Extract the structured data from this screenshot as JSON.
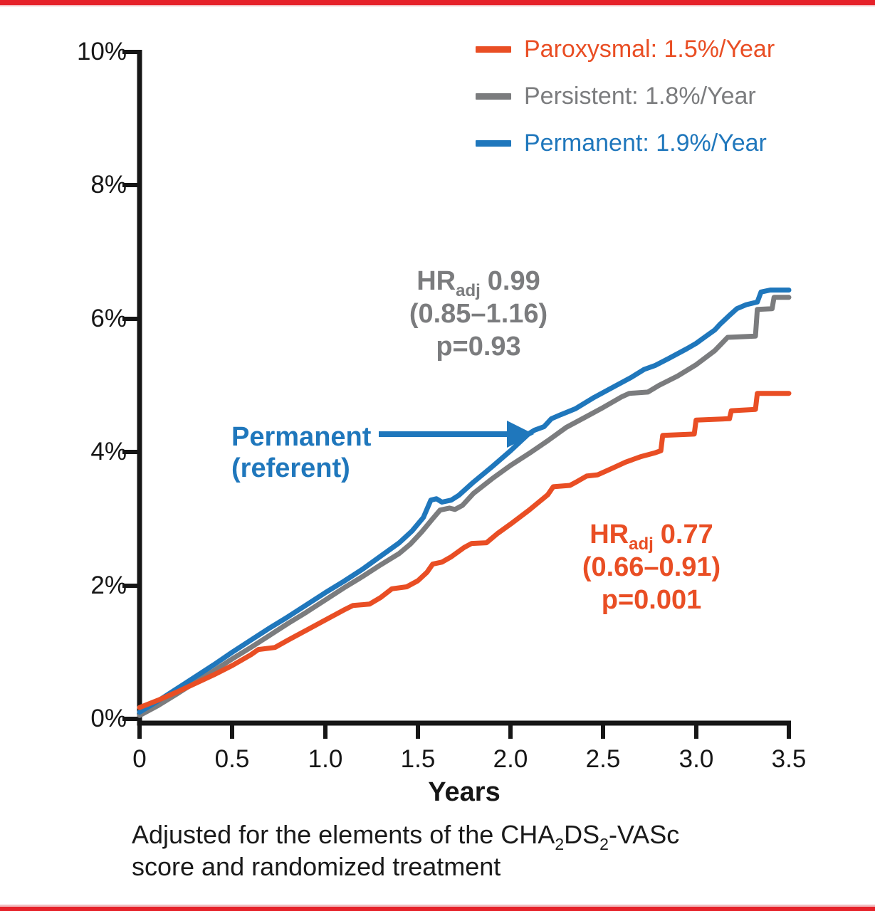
{
  "page": {
    "top_bar_color": "#E62129",
    "bottom_bar_color": "#E62129",
    "bar_shade_color": "#F2BCC0",
    "background": "#FFFFFF",
    "axis_color": "#161616"
  },
  "chart_data": {
    "type": "line",
    "title": "",
    "xlabel": "Years",
    "ylabel": "",
    "x_unit": "Years",
    "y_unit": "percent cumulative event rate",
    "xlim": [
      0,
      3.5
    ],
    "ylim": [
      0,
      10
    ],
    "grid": false,
    "legend_position": "top-right",
    "x_ticks": [
      "0",
      "0.5",
      "1.0",
      "1.5",
      "2.0",
      "2.5",
      "3.0",
      "3.5"
    ],
    "y_ticks": [
      "0%",
      "2%",
      "4%",
      "6%",
      "8%",
      "10%"
    ],
    "series": [
      {
        "name": "Paroxysmal",
        "legend_label": "Paroxysmal: 1.5%/Year",
        "annual_rate": "1.5%/Year",
        "color": "#E94E24",
        "points": [
          [
            0,
            0.17
          ],
          [
            0.1,
            0.28
          ],
          [
            0.2,
            0.4
          ],
          [
            0.3,
            0.53
          ],
          [
            0.4,
            0.66
          ],
          [
            0.5,
            0.8
          ],
          [
            0.6,
            0.96
          ],
          [
            0.64,
            1.04
          ],
          [
            0.73,
            1.07
          ],
          [
            0.8,
            1.18
          ],
          [
            0.9,
            1.33
          ],
          [
            1.0,
            1.48
          ],
          [
            1.1,
            1.63
          ],
          [
            1.15,
            1.7
          ],
          [
            1.24,
            1.72
          ],
          [
            1.3,
            1.82
          ],
          [
            1.36,
            1.95
          ],
          [
            1.44,
            1.98
          ],
          [
            1.5,
            2.07
          ],
          [
            1.55,
            2.2
          ],
          [
            1.58,
            2.32
          ],
          [
            1.63,
            2.35
          ],
          [
            1.68,
            2.43
          ],
          [
            1.75,
            2.57
          ],
          [
            1.79,
            2.63
          ],
          [
            1.87,
            2.64
          ],
          [
            1.93,
            2.78
          ],
          [
            2.0,
            2.92
          ],
          [
            2.1,
            3.13
          ],
          [
            2.2,
            3.36
          ],
          [
            2.23,
            3.48
          ],
          [
            2.32,
            3.5
          ],
          [
            2.36,
            3.56
          ],
          [
            2.41,
            3.64
          ],
          [
            2.47,
            3.66
          ],
          [
            2.55,
            3.76
          ],
          [
            2.62,
            3.85
          ],
          [
            2.7,
            3.93
          ],
          [
            2.78,
            3.99
          ],
          [
            2.81,
            4.02
          ],
          [
            2.82,
            4.25
          ],
          [
            2.99,
            4.27
          ],
          [
            3.0,
            4.48
          ],
          [
            3.18,
            4.5
          ],
          [
            3.19,
            4.62
          ],
          [
            3.32,
            4.64
          ],
          [
            3.33,
            4.88
          ],
          [
            3.5,
            4.88
          ]
        ]
      },
      {
        "name": "Persistent",
        "legend_label": "Persistent: 1.8%/Year",
        "annual_rate": "1.8%/Year",
        "color": "#7B7C7E",
        "points": [
          [
            0,
            0.05
          ],
          [
            0.1,
            0.2
          ],
          [
            0.2,
            0.37
          ],
          [
            0.3,
            0.55
          ],
          [
            0.4,
            0.72
          ],
          [
            0.5,
            0.9
          ],
          [
            0.6,
            1.07
          ],
          [
            0.7,
            1.25
          ],
          [
            0.8,
            1.43
          ],
          [
            0.9,
            1.6
          ],
          [
            1.0,
            1.78
          ],
          [
            1.1,
            1.96
          ],
          [
            1.2,
            2.13
          ],
          [
            1.3,
            2.31
          ],
          [
            1.4,
            2.48
          ],
          [
            1.46,
            2.62
          ],
          [
            1.52,
            2.8
          ],
          [
            1.58,
            3.0
          ],
          [
            1.62,
            3.13
          ],
          [
            1.67,
            3.16
          ],
          [
            1.7,
            3.14
          ],
          [
            1.74,
            3.2
          ],
          [
            1.8,
            3.38
          ],
          [
            1.9,
            3.6
          ],
          [
            2.0,
            3.8
          ],
          [
            2.1,
            3.98
          ],
          [
            2.2,
            4.17
          ],
          [
            2.3,
            4.37
          ],
          [
            2.4,
            4.52
          ],
          [
            2.5,
            4.67
          ],
          [
            2.6,
            4.83
          ],
          [
            2.64,
            4.88
          ],
          [
            2.74,
            4.9
          ],
          [
            2.8,
            5.0
          ],
          [
            2.9,
            5.14
          ],
          [
            3.0,
            5.31
          ],
          [
            3.1,
            5.52
          ],
          [
            3.17,
            5.72
          ],
          [
            3.32,
            5.74
          ],
          [
            3.33,
            6.14
          ],
          [
            3.41,
            6.15
          ],
          [
            3.42,
            6.32
          ],
          [
            3.5,
            6.32
          ]
        ]
      },
      {
        "name": "Permanent",
        "legend_label": "Permanent: 1.9%/Year",
        "annual_rate": "1.9%/Year",
        "color": "#1F77BC",
        "points": [
          [
            0,
            0.1
          ],
          [
            0.1,
            0.27
          ],
          [
            0.2,
            0.45
          ],
          [
            0.3,
            0.63
          ],
          [
            0.4,
            0.81
          ],
          [
            0.5,
            1.0
          ],
          [
            0.6,
            1.18
          ],
          [
            0.7,
            1.36
          ],
          [
            0.8,
            1.53
          ],
          [
            0.9,
            1.71
          ],
          [
            1.0,
            1.89
          ],
          [
            1.1,
            2.06
          ],
          [
            1.2,
            2.24
          ],
          [
            1.3,
            2.44
          ],
          [
            1.4,
            2.64
          ],
          [
            1.47,
            2.82
          ],
          [
            1.53,
            3.02
          ],
          [
            1.57,
            3.28
          ],
          [
            1.6,
            3.3
          ],
          [
            1.63,
            3.25
          ],
          [
            1.68,
            3.28
          ],
          [
            1.72,
            3.35
          ],
          [
            1.8,
            3.55
          ],
          [
            1.9,
            3.78
          ],
          [
            2.0,
            4.02
          ],
          [
            2.05,
            4.15
          ],
          [
            2.1,
            4.28
          ],
          [
            2.13,
            4.33
          ],
          [
            2.18,
            4.38
          ],
          [
            2.22,
            4.5
          ],
          [
            2.27,
            4.56
          ],
          [
            2.35,
            4.65
          ],
          [
            2.45,
            4.82
          ],
          [
            2.55,
            4.97
          ],
          [
            2.65,
            5.12
          ],
          [
            2.72,
            5.24
          ],
          [
            2.78,
            5.3
          ],
          [
            2.85,
            5.4
          ],
          [
            2.95,
            5.55
          ],
          [
            3.0,
            5.63
          ],
          [
            3.05,
            5.73
          ],
          [
            3.1,
            5.83
          ],
          [
            3.13,
            5.92
          ],
          [
            3.18,
            6.05
          ],
          [
            3.22,
            6.15
          ],
          [
            3.27,
            6.21
          ],
          [
            3.33,
            6.25
          ],
          [
            3.35,
            6.4
          ],
          [
            3.4,
            6.43
          ],
          [
            3.5,
            6.43
          ]
        ]
      }
    ],
    "annotations": {
      "persistent_vs_permanent": {
        "hr_label": "HR",
        "hr_sub": "adj",
        "hr_value": "0.99",
        "ci": "(0.85–1.16)",
        "p": "p=0.93",
        "color": "#7B7C7E"
      },
      "paroxysmal_vs_permanent": {
        "hr_label": "HR",
        "hr_sub": "adj",
        "hr_value": "0.77",
        "ci": "(0.66–0.91)",
        "p": "p=0.001",
        "color": "#E94E24"
      },
      "referent": {
        "line1": "Permanent",
        "line2": "(referent)",
        "color": "#1F77BC"
      }
    },
    "footnote": {
      "line1_part1": "Adjusted for the elements of the CHA",
      "line1_sub1": "2",
      "line1_part2": "DS",
      "line1_sub2": "2",
      "line1_part3": "-VASc",
      "line2": "score and randomized treatment"
    }
  }
}
